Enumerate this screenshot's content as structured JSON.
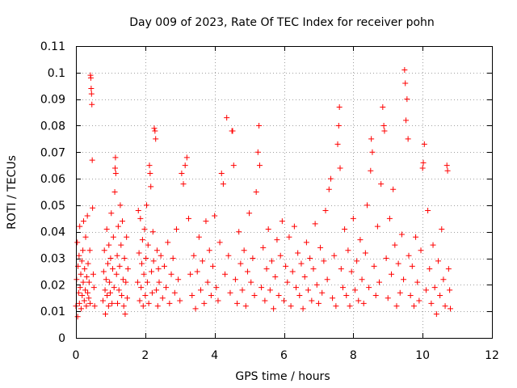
{
  "chart_data": {
    "type": "scatter",
    "title": "Day 009 of 2023, Rate Of TEC Index for receiver pohn",
    "xlabel": "GPS time / hours",
    "ylabel": "ROTI / TECUs",
    "xlim": [
      0,
      12
    ],
    "ylim": [
      0,
      0.11
    ],
    "xticks": [
      0,
      2,
      4,
      6,
      8,
      10,
      12
    ],
    "xtick_labels": [
      "0",
      "2",
      "4",
      "6",
      "8",
      "10",
      "12"
    ],
    "yticks": [
      0,
      0.01,
      0.02,
      0.03,
      0.04,
      0.05,
      0.06,
      0.07,
      0.08,
      0.09,
      0.1,
      0.11
    ],
    "ytick_labels": [
      "0",
      "0.01",
      "0.02",
      "0.03",
      "0.04",
      "0.05",
      "0.06",
      "0.07",
      "0.08",
      "0.09",
      "0.1",
      "0.11"
    ],
    "grid": true,
    "marker": "+",
    "color": "#ff0000",
    "series": [
      {
        "name": "ROTI",
        "points": [
          [
            0.0,
            0.012
          ],
          [
            0.02,
            0.022
          ],
          [
            0.04,
            0.036
          ],
          [
            0.05,
            0.008
          ],
          [
            0.06,
            0.027
          ],
          [
            0.08,
            0.017
          ],
          [
            0.09,
            0.031
          ],
          [
            0.1,
            0.013
          ],
          [
            0.11,
            0.042
          ],
          [
            0.12,
            0.019
          ],
          [
            0.14,
            0.024
          ],
          [
            0.15,
            0.011
          ],
          [
            0.17,
            0.029
          ],
          [
            0.18,
            0.016
          ],
          [
            0.2,
            0.033
          ],
          [
            0.21,
            0.021
          ],
          [
            0.22,
            0.044
          ],
          [
            0.24,
            0.014
          ],
          [
            0.25,
            0.026
          ],
          [
            0.27,
            0.018
          ],
          [
            0.28,
            0.038
          ],
          [
            0.3,
            0.012
          ],
          [
            0.31,
            0.023
          ],
          [
            0.33,
            0.046
          ],
          [
            0.34,
            0.017
          ],
          [
            0.35,
            0.028
          ],
          [
            0.37,
            0.015
          ],
          [
            0.38,
            0.021
          ],
          [
            0.4,
            0.033
          ],
          [
            0.41,
            0.013
          ],
          [
            0.42,
            0.099
          ],
          [
            0.43,
            0.098
          ],
          [
            0.44,
            0.094
          ],
          [
            0.45,
            0.092
          ],
          [
            0.46,
            0.088
          ],
          [
            0.47,
            0.067
          ],
          [
            0.48,
            0.049
          ],
          [
            0.5,
            0.024
          ],
          [
            0.52,
            0.019
          ],
          [
            0.54,
            0.012
          ],
          [
            0.78,
            0.014
          ],
          [
            0.8,
            0.025
          ],
          [
            0.82,
            0.033
          ],
          [
            0.84,
            0.018
          ],
          [
            0.85,
            0.009
          ],
          [
            0.87,
            0.022
          ],
          [
            0.89,
            0.041
          ],
          [
            0.9,
            0.016
          ],
          [
            0.92,
            0.028
          ],
          [
            0.94,
            0.012
          ],
          [
            0.95,
            0.035
          ],
          [
            0.97,
            0.021
          ],
          [
            0.99,
            0.017
          ],
          [
            1.0,
            0.03
          ],
          [
            1.02,
            0.047
          ],
          [
            1.04,
            0.013
          ],
          [
            1.06,
            0.026
          ],
          [
            1.08,
            0.038
          ],
          [
            1.1,
            0.019
          ],
          [
            1.12,
            0.055
          ],
          [
            1.13,
            0.064
          ],
          [
            1.14,
            0.068
          ],
          [
            1.15,
            0.062
          ],
          [
            1.17,
            0.024
          ],
          [
            1.19,
            0.031
          ],
          [
            1.2,
            0.013
          ],
          [
            1.22,
            0.042
          ],
          [
            1.24,
            0.018
          ],
          [
            1.26,
            0.027
          ],
          [
            1.28,
            0.05
          ],
          [
            1.3,
            0.035
          ],
          [
            1.32,
            0.016
          ],
          [
            1.34,
            0.044
          ],
          [
            1.36,
            0.022
          ],
          [
            1.38,
            0.012
          ],
          [
            1.4,
            0.03
          ],
          [
            1.42,
            0.009
          ],
          [
            1.44,
            0.021
          ],
          [
            1.46,
            0.038
          ],
          [
            1.48,
            0.015
          ],
          [
            1.5,
            0.026
          ],
          [
            1.78,
            0.021
          ],
          [
            1.8,
            0.048
          ],
          [
            1.82,
            0.032
          ],
          [
            1.84,
            0.014
          ],
          [
            1.86,
            0.045
          ],
          [
            1.88,
            0.019
          ],
          [
            1.9,
            0.028
          ],
          [
            1.92,
            0.037
          ],
          [
            1.94,
            0.012
          ],
          [
            1.96,
            0.024
          ],
          [
            1.98,
            0.041
          ],
          [
            2.0,
            0.016
          ],
          [
            2.02,
            0.03
          ],
          [
            2.04,
            0.05
          ],
          [
            2.06,
            0.021
          ],
          [
            2.08,
            0.035
          ],
          [
            2.1,
            0.013
          ],
          [
            2.12,
            0.065
          ],
          [
            2.14,
            0.062
          ],
          [
            2.16,
            0.057
          ],
          [
            2.18,
            0.025
          ],
          [
            2.2,
            0.017
          ],
          [
            2.22,
            0.04
          ],
          [
            2.24,
            0.029
          ],
          [
            2.26,
            0.079
          ],
          [
            2.28,
            0.078
          ],
          [
            2.3,
            0.075
          ],
          [
            2.32,
            0.018
          ],
          [
            2.34,
            0.033
          ],
          [
            2.36,
            0.012
          ],
          [
            2.38,
            0.026
          ],
          [
            2.4,
            0.021
          ],
          [
            2.45,
            0.031
          ],
          [
            2.5,
            0.015
          ],
          [
            2.55,
            0.027
          ],
          [
            2.6,
            0.019
          ],
          [
            2.65,
            0.036
          ],
          [
            2.7,
            0.013
          ],
          [
            2.75,
            0.024
          ],
          [
            2.8,
            0.03
          ],
          [
            2.85,
            0.017
          ],
          [
            2.9,
            0.041
          ],
          [
            2.95,
            0.022
          ],
          [
            3.0,
            0.014
          ],
          [
            3.05,
            0.062
          ],
          [
            3.1,
            0.058
          ],
          [
            3.15,
            0.065
          ],
          [
            3.2,
            0.068
          ],
          [
            3.25,
            0.045
          ],
          [
            3.3,
            0.024
          ],
          [
            3.35,
            0.016
          ],
          [
            3.4,
            0.031
          ],
          [
            3.45,
            0.011
          ],
          [
            3.5,
            0.025
          ],
          [
            3.55,
            0.038
          ],
          [
            3.6,
            0.018
          ],
          [
            3.65,
            0.029
          ],
          [
            3.7,
            0.013
          ],
          [
            3.75,
            0.044
          ],
          [
            3.8,
            0.021
          ],
          [
            3.85,
            0.033
          ],
          [
            3.9,
            0.016
          ],
          [
            3.95,
            0.027
          ],
          [
            4.0,
            0.046
          ],
          [
            4.05,
            0.019
          ],
          [
            4.1,
            0.014
          ],
          [
            4.15,
            0.036
          ],
          [
            4.2,
            0.062
          ],
          [
            4.25,
            0.058
          ],
          [
            4.3,
            0.024
          ],
          [
            4.35,
            0.083
          ],
          [
            4.4,
            0.031
          ],
          [
            4.45,
            0.017
          ],
          [
            4.5,
            0.078
          ],
          [
            4.52,
            0.078
          ],
          [
            4.55,
            0.065
          ],
          [
            4.6,
            0.022
          ],
          [
            4.65,
            0.013
          ],
          [
            4.7,
            0.04
          ],
          [
            4.75,
            0.028
          ],
          [
            4.8,
            0.018
          ],
          [
            4.85,
            0.033
          ],
          [
            4.9,
            0.012
          ],
          [
            4.95,
            0.025
          ],
          [
            5.0,
            0.047
          ],
          [
            5.05,
            0.021
          ],
          [
            5.1,
            0.03
          ],
          [
            5.15,
            0.016
          ],
          [
            5.2,
            0.055
          ],
          [
            5.25,
            0.07
          ],
          [
            5.28,
            0.08
          ],
          [
            5.3,
            0.065
          ],
          [
            5.35,
            0.019
          ],
          [
            5.4,
            0.034
          ],
          [
            5.45,
            0.014
          ],
          [
            5.5,
            0.026
          ],
          [
            5.55,
            0.041
          ],
          [
            5.6,
            0.018
          ],
          [
            5.65,
            0.029
          ],
          [
            5.7,
            0.011
          ],
          [
            5.75,
            0.023
          ],
          [
            5.8,
            0.037
          ],
          [
            5.85,
            0.016
          ],
          [
            5.9,
            0.031
          ],
          [
            5.95,
            0.044
          ],
          [
            6.0,
            0.014
          ],
          [
            6.05,
            0.027
          ],
          [
            6.1,
            0.021
          ],
          [
            6.15,
            0.038
          ],
          [
            6.2,
            0.012
          ],
          [
            6.25,
            0.025
          ],
          [
            6.3,
            0.042
          ],
          [
            6.35,
            0.019
          ],
          [
            6.4,
            0.032
          ],
          [
            6.45,
            0.016
          ],
          [
            6.5,
            0.028
          ],
          [
            6.55,
            0.011
          ],
          [
            6.6,
            0.023
          ],
          [
            6.65,
            0.036
          ],
          [
            6.7,
            0.018
          ],
          [
            6.75,
            0.03
          ],
          [
            6.8,
            0.014
          ],
          [
            6.85,
            0.026
          ],
          [
            6.9,
            0.043
          ],
          [
            6.95,
            0.02
          ],
          [
            7.0,
            0.013
          ],
          [
            7.05,
            0.034
          ],
          [
            7.1,
            0.017
          ],
          [
            7.15,
            0.029
          ],
          [
            7.2,
            0.048
          ],
          [
            7.25,
            0.022
          ],
          [
            7.3,
            0.056
          ],
          [
            7.35,
            0.06
          ],
          [
            7.4,
            0.015
          ],
          [
            7.45,
            0.031
          ],
          [
            7.5,
            0.012
          ],
          [
            7.55,
            0.073
          ],
          [
            7.58,
            0.08
          ],
          [
            7.6,
            0.087
          ],
          [
            7.62,
            0.064
          ],
          [
            7.65,
            0.026
          ],
          [
            7.7,
            0.019
          ],
          [
            7.75,
            0.041
          ],
          [
            7.8,
            0.016
          ],
          [
            7.85,
            0.033
          ],
          [
            7.9,
            0.012
          ],
          [
            7.95,
            0.025
          ],
          [
            8.0,
            0.045
          ],
          [
            8.05,
            0.018
          ],
          [
            8.1,
            0.029
          ],
          [
            8.15,
            0.014
          ],
          [
            8.2,
            0.037
          ],
          [
            8.25,
            0.022
          ],
          [
            8.3,
            0.013
          ],
          [
            8.35,
            0.032
          ],
          [
            8.4,
            0.05
          ],
          [
            8.45,
            0.019
          ],
          [
            8.5,
            0.063
          ],
          [
            8.52,
            0.075
          ],
          [
            8.55,
            0.07
          ],
          [
            8.6,
            0.027
          ],
          [
            8.65,
            0.016
          ],
          [
            8.7,
            0.042
          ],
          [
            8.75,
            0.021
          ],
          [
            8.8,
            0.058
          ],
          [
            8.85,
            0.087
          ],
          [
            8.88,
            0.08
          ],
          [
            8.9,
            0.078
          ],
          [
            8.95,
            0.03
          ],
          [
            9.0,
            0.015
          ],
          [
            9.05,
            0.045
          ],
          [
            9.1,
            0.024
          ],
          [
            9.15,
            0.056
          ],
          [
            9.2,
            0.035
          ],
          [
            9.25,
            0.012
          ],
          [
            9.3,
            0.028
          ],
          [
            9.35,
            0.017
          ],
          [
            9.4,
            0.039
          ],
          [
            9.45,
            0.022
          ],
          [
            9.48,
            0.101
          ],
          [
            9.5,
            0.096
          ],
          [
            9.52,
            0.082
          ],
          [
            9.55,
            0.09
          ],
          [
            9.58,
            0.075
          ],
          [
            9.6,
            0.031
          ],
          [
            9.65,
            0.016
          ],
          [
            9.7,
            0.027
          ],
          [
            9.75,
            0.012
          ],
          [
            9.8,
            0.038
          ],
          [
            9.85,
            0.021
          ],
          [
            9.9,
            0.014
          ],
          [
            9.95,
            0.033
          ],
          [
            10.0,
            0.064
          ],
          [
            10.02,
            0.066
          ],
          [
            10.05,
            0.073
          ],
          [
            10.1,
            0.018
          ],
          [
            10.15,
            0.048
          ],
          [
            10.2,
            0.026
          ],
          [
            10.25,
            0.013
          ],
          [
            10.3,
            0.035
          ],
          [
            10.35,
            0.019
          ],
          [
            10.4,
            0.009
          ],
          [
            10.45,
            0.029
          ],
          [
            10.5,
            0.016
          ],
          [
            10.55,
            0.041
          ],
          [
            10.6,
            0.022
          ],
          [
            10.65,
            0.012
          ],
          [
            10.7,
            0.065
          ],
          [
            10.72,
            0.063
          ],
          [
            10.75,
            0.026
          ],
          [
            10.78,
            0.018
          ],
          [
            10.8,
            0.011
          ]
        ]
      }
    ]
  }
}
